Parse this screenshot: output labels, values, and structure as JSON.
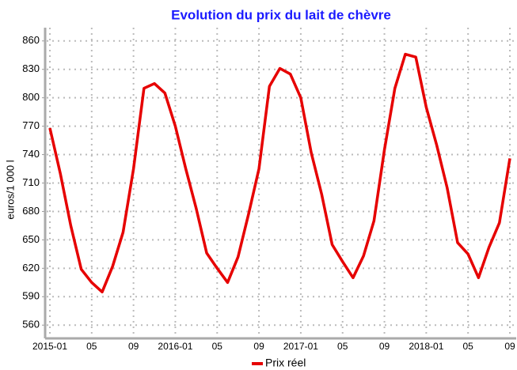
{
  "chart_data": {
    "type": "line",
    "title": "Evolution du prix du lait de chèvre",
    "y_label": "euros/1 000 l",
    "categories": [
      "2015-01",
      null,
      null,
      null,
      "05",
      null,
      null,
      null,
      "09",
      null,
      null,
      null,
      "2016-01",
      null,
      null,
      null,
      "05",
      null,
      null,
      null,
      "09",
      null,
      null,
      null,
      "2017-01",
      null,
      null,
      null,
      "05",
      null,
      null,
      null,
      "09",
      null,
      null,
      null,
      "2018-01",
      null,
      null,
      null,
      "05",
      null,
      null,
      null,
      "09"
    ],
    "series": [
      {
        "name": "Prix réel",
        "color": "#e60000",
        "values": [
          768,
          720,
          665,
          619,
          605,
          595,
          622,
          658,
          725,
          810,
          815,
          805,
          770,
          725,
          683,
          636,
          620,
          605,
          632,
          677,
          725,
          812,
          831,
          825,
          800,
          742,
          698,
          645,
          627,
          610,
          633,
          670,
          745,
          810,
          846,
          843,
          790,
          750,
          705,
          647,
          635,
          610,
          642,
          668,
          736
        ]
      }
    ],
    "ylim": [
      546,
      874
    ],
    "yticks": [
      560,
      590,
      620,
      650,
      680,
      710,
      740,
      770,
      800,
      830,
      860
    ],
    "grid": true,
    "legend": "bottom"
  }
}
